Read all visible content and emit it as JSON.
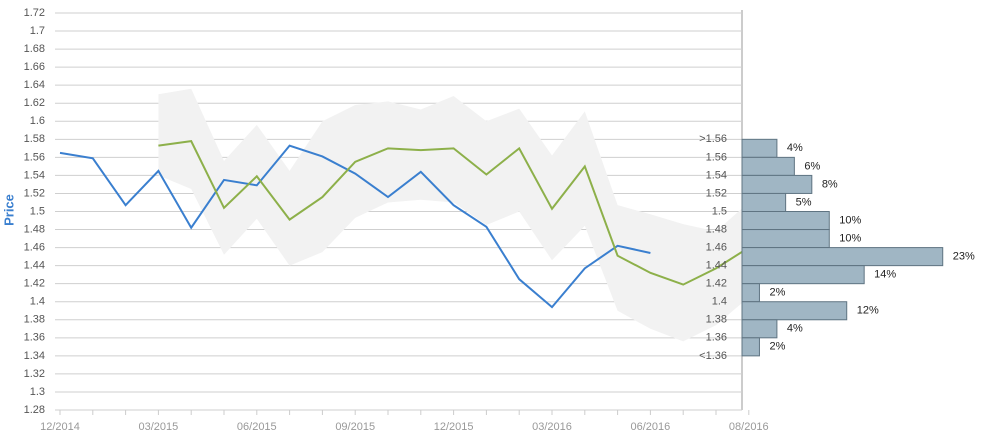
{
  "chart_data": {
    "type": "line",
    "ylabel": "Price",
    "categories": [
      "12/2014",
      null,
      null,
      "03/2015",
      null,
      null,
      "06/2015",
      null,
      null,
      "09/2015",
      null,
      null,
      "12/2015",
      null,
      null,
      "03/2016",
      null,
      null,
      "06/2016",
      null,
      null,
      "08/2016"
    ],
    "ylim": [
      1.28,
      1.72
    ],
    "yticks": [
      1.28,
      1.3,
      1.32,
      1.34,
      1.36,
      1.38,
      1.4,
      1.42,
      1.44,
      1.46,
      1.48,
      1.5,
      1.52,
      1.54,
      1.56,
      1.58,
      1.6,
      1.62,
      1.64,
      1.66,
      1.68,
      1.7,
      1.72
    ],
    "grid": true,
    "band": {
      "color": "#f2f2f2",
      "upper": [
        null,
        null,
        null,
        1.63,
        1.636,
        1.556,
        1.596,
        1.545,
        1.6,
        1.618,
        1.622,
        1.613,
        1.628,
        1.6,
        1.614,
        1.562,
        1.611,
        1.507,
        1.497,
        1.486,
        1.478,
        1.51
      ],
      "lower": [
        null,
        null,
        null,
        1.54,
        1.525,
        1.452,
        1.492,
        1.44,
        1.455,
        1.493,
        1.51,
        1.513,
        1.51,
        1.485,
        1.5,
        1.446,
        1.484,
        1.39,
        1.37,
        1.356,
        1.374,
        1.405
      ]
    },
    "series": [
      {
        "color": "#3a7fcf",
        "values": [
          1.565,
          1.559,
          1.507,
          1.545,
          1.482,
          1.535,
          1.529,
          1.573,
          1.561,
          1.542,
          1.516,
          1.544,
          1.507,
          1.483,
          1.425,
          1.394,
          1.437,
          1.462,
          1.454,
          null,
          null,
          null
        ]
      },
      {
        "color": "#8db04a",
        "values": [
          null,
          null,
          null,
          1.573,
          1.578,
          1.504,
          1.539,
          1.491,
          1.516,
          1.555,
          1.57,
          1.568,
          1.57,
          1.541,
          1.57,
          1.503,
          1.55,
          1.451,
          1.432,
          1.419,
          1.437,
          1.46
        ]
      }
    ],
    "histogram": {
      "color": "#a0b6c4",
      "bins": [
        {
          "value": 1.58,
          "label": ">1.56"
        },
        1.56,
        1.54,
        1.52,
        1.5,
        1.48,
        1.46,
        1.44,
        1.42,
        1.4,
        1.38,
        1.36,
        {
          "value": 1.34,
          "label": "<1.36"
        }
      ],
      "values": [
        4,
        6,
        8,
        5,
        10,
        10,
        23,
        14,
        2,
        12,
        4,
        2
      ],
      "value_labels": [
        "4%",
        "6%",
        "8%",
        "5%",
        "10%",
        "10%",
        "23%",
        "14%",
        "2%",
        "12%",
        "4%",
        "2%"
      ],
      "xlim": [
        0,
        27.5
      ]
    }
  }
}
